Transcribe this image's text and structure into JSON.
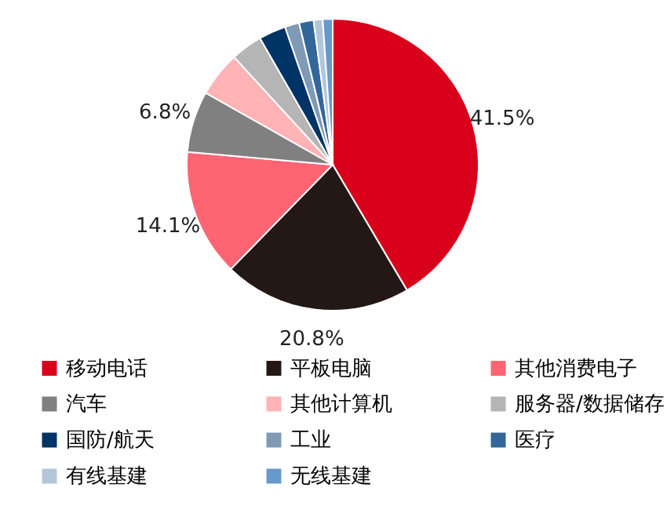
{
  "chart_data": {
    "type": "pie",
    "categories": [
      "移动电话",
      "平板电脑",
      "其他消费电子",
      "汽车",
      "其他计算机",
      "服务器/数据储存",
      "国防/航天",
      "工业",
      "医疗",
      "有线基建",
      "无线基建"
    ],
    "values": [
      41.5,
      20.8,
      14.1,
      6.8,
      5.0,
      3.5,
      3.0,
      1.6,
      1.6,
      1.0,
      1.1
    ],
    "value_labels": [
      "41.5%",
      "20.8%",
      "14.1%",
      "6.8%",
      null,
      null,
      null,
      null,
      null,
      null,
      null
    ],
    "colors": [
      "#d9001b",
      "#231815",
      "#ff6473",
      "#808080",
      "#ffb3b5",
      "#b5b5b5",
      "#003366",
      "#7f9ab5",
      "#336699",
      "#b3c6d9",
      "#6699cc"
    ],
    "legend": "bottom"
  }
}
